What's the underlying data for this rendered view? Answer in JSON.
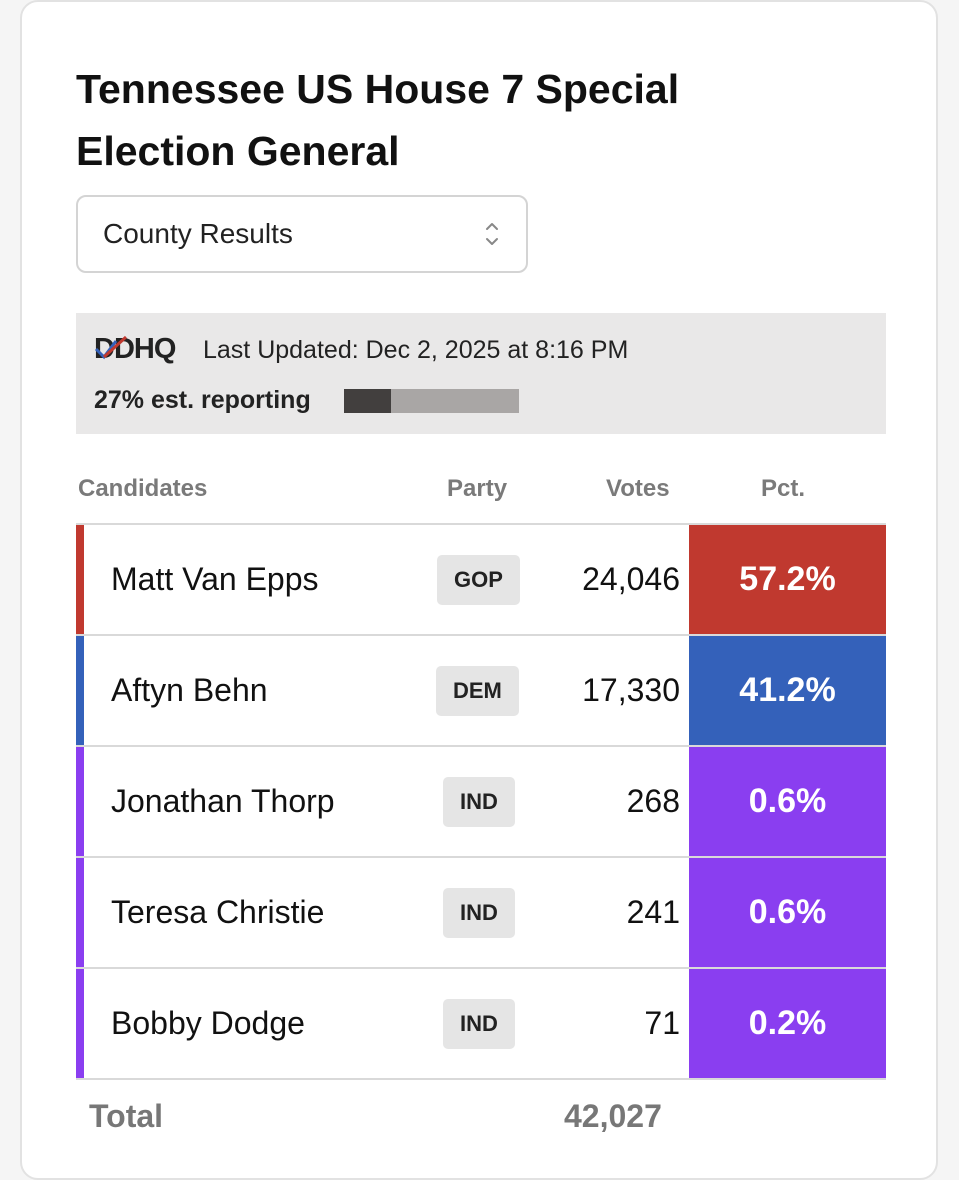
{
  "header": {
    "title": "Tennessee US House 7 Special Election General"
  },
  "view_select": {
    "value": "County Results"
  },
  "status": {
    "logo_text": "DDHQ",
    "last_updated": "Last Updated: Dec 2, 2025 at 8:16 PM",
    "reporting_label": "27% est. reporting",
    "reporting_fraction": 0.27
  },
  "table": {
    "headers": {
      "candidates": "Candidates",
      "party": "Party",
      "votes": "Votes",
      "pct": "Pct."
    },
    "rows": [
      {
        "name": "Matt Van Epps",
        "party": "GOP",
        "votes": "24,046",
        "pct": "57.2%",
        "color": "#c0392f"
      },
      {
        "name": "Aftyn Behn",
        "party": "DEM",
        "votes": "17,330",
        "pct": "41.2%",
        "color": "#3461ba"
      },
      {
        "name": "Jonathan Thorp",
        "party": "IND",
        "votes": "268",
        "pct": "0.6%",
        "color": "#8a3ef0"
      },
      {
        "name": "Teresa Christie",
        "party": "IND",
        "votes": "241",
        "pct": "0.6%",
        "color": "#8a3ef0"
      },
      {
        "name": "Bobby Dodge",
        "party": "IND",
        "votes": "71",
        "pct": "0.2%",
        "color": "#8a3ef0"
      }
    ],
    "total_label": "Total",
    "total_votes": "42,027"
  }
}
